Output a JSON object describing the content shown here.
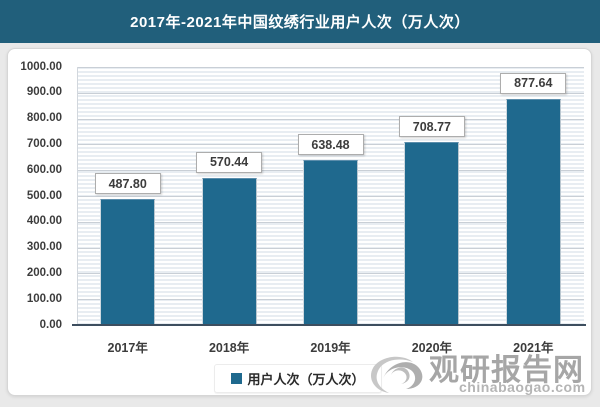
{
  "header": {
    "title": "2017年-2021年中国纹绣行业用户人次（万人次）"
  },
  "chart_data": {
    "type": "bar",
    "title": "2017年-2021年中国纹绣行业用户人次（万人次）",
    "categories": [
      "2017年",
      "2018年",
      "2019年",
      "2020年",
      "2021年"
    ],
    "series": [
      {
        "name": "用户人次（万人次）",
        "values": [
          487.8,
          570.44,
          638.48,
          708.77,
          877.64
        ]
      }
    ],
    "value_labels": [
      "487.80",
      "570.44",
      "638.48",
      "708.77",
      "877.64"
    ],
    "ylabel": "",
    "xlabel": "",
    "ylim": [
      0,
      1000
    ],
    "y_tick_step": 100,
    "y_tick_labels": [
      "1000.00",
      "900.00",
      "800.00",
      "700.00",
      "600.00",
      "500.00",
      "400.00",
      "300.00",
      "200.00",
      "100.00",
      "0.00"
    ],
    "grid": true,
    "legend_position": "bottom"
  },
  "legend": {
    "marker": "teal-square",
    "label": "用户人次（万人次）"
  },
  "watermark": {
    "logo": "swirl-logo",
    "brand": "观研报告网",
    "domain": "chinabaogao.com"
  },
  "colors": {
    "header_bg": "#215f7b",
    "bar": "#1f698e",
    "plot_stripe": "#e8edf2",
    "gridline": "#c9cfd6",
    "axis_line": "#3d4e5f",
    "page_bg": "#e9e9e9",
    "panel_bg": "#ffffff",
    "label_text": "#3c3c3c",
    "watermark_gray": "#a6a6a6"
  }
}
